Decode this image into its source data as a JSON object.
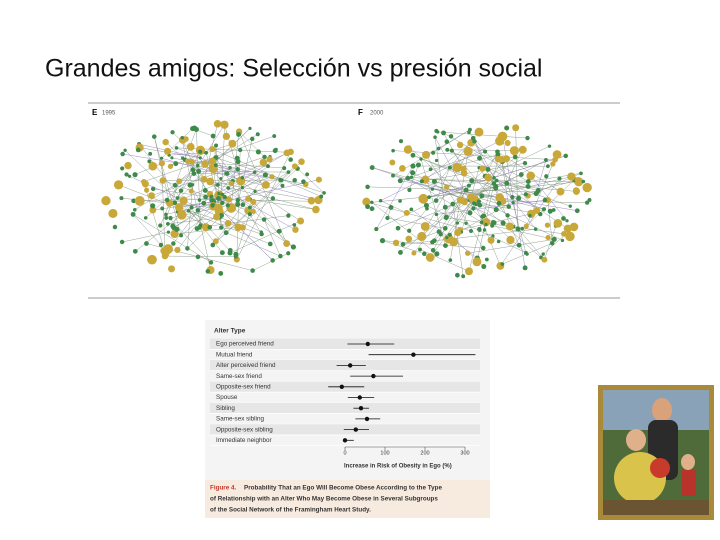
{
  "title": "Grandes amigos: Selección vs presión social",
  "networks": [
    {
      "panel": "E",
      "year": "1995"
    },
    {
      "panel": "F",
      "year": "2000"
    }
  ],
  "chart_data": {
    "type": "forest",
    "axis_group_label": "Alter Type",
    "categories": [
      "Ego perceived friend",
      "Mutual friend",
      "Alter perceived friend",
      "Same-sex friend",
      "Opposite-sex friend",
      "Spouse",
      "Sibling",
      "Same-sex sibling",
      "Opposite-sex sibling",
      "Immediate neighbor"
    ],
    "values": [
      57,
      171,
      13,
      71,
      -8,
      37,
      40,
      55,
      27,
      0
    ],
    "low": [
      6,
      59,
      -21,
      13,
      -42,
      7,
      21,
      26,
      -3,
      -3
    ],
    "high": [
      123,
      326,
      52,
      145,
      48,
      73,
      60,
      88,
      60,
      22
    ],
    "xlim": [
      -50,
      325
    ],
    "xticks": [
      0,
      100,
      200,
      300
    ],
    "xlabel": "Increase in Risk of Obesity in Ego (%)",
    "color": "#111111"
  },
  "caption": {
    "label": "Figure 4.",
    "lines": [
      "Probability That an Ego Will Become Obese According to the Type",
      "of Relationship with an Alter Who May Become Obese in Several Subgroups",
      "of the Social Network of the Framingham Heart Study."
    ]
  }
}
